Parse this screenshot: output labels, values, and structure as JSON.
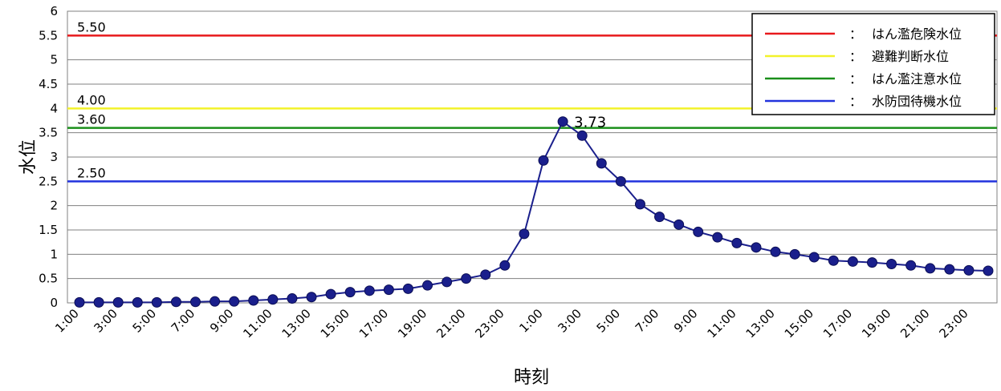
{
  "chart_data": {
    "type": "line",
    "xlabel": "時刻",
    "ylabel": "水位",
    "ylim": [
      0,
      6
    ],
    "yticks": [
      "0",
      "0.5",
      "1",
      "1.5",
      "2",
      "2.5",
      "3",
      "3.5",
      "4",
      "4.5",
      "5",
      "5.5",
      "6"
    ],
    "grid": true,
    "legend_position": "top-right",
    "x": [
      "1:00",
      "2:00",
      "3:00",
      "4:00",
      "5:00",
      "6:00",
      "7:00",
      "8:00",
      "9:00",
      "10:00",
      "11:00",
      "12:00",
      "13:00",
      "14:00",
      "15:00",
      "16:00",
      "17:00",
      "18:00",
      "19:00",
      "20:00",
      "21:00",
      "22:00",
      "23:00",
      "24:00",
      "1:00",
      "2:00",
      "3:00",
      "4:00",
      "5:00",
      "6:00",
      "7:00",
      "8:00",
      "9:00",
      "10:00",
      "11:00",
      "12:00",
      "13:00",
      "14:00",
      "15:00",
      "16:00",
      "17:00",
      "18:00",
      "19:00",
      "20:00",
      "21:00",
      "22:00",
      "23:00",
      "24:00"
    ],
    "x_tick_labels": [
      "1:00",
      "3:00",
      "5:00",
      "7:00",
      "9:00",
      "11:00",
      "13:00",
      "15:00",
      "17:00",
      "19:00",
      "21:00",
      "23:00",
      "1:00",
      "3:00",
      "5:00",
      "7:00",
      "9:00",
      "11:00",
      "13:00",
      "15:00",
      "17:00",
      "19:00",
      "21:00",
      "23:00"
    ],
    "series": [
      {
        "values": [
          0.01,
          0.01,
          0.01,
          0.01,
          0.01,
          0.02,
          0.02,
          0.03,
          0.03,
          0.05,
          0.07,
          0.09,
          0.12,
          0.18,
          0.22,
          0.25,
          0.27,
          0.29,
          0.36,
          0.43,
          0.5,
          0.58,
          0.77,
          1.42,
          2.93,
          3.73,
          3.44,
          2.87,
          2.5,
          2.03,
          1.77,
          1.61,
          1.46,
          1.35,
          1.23,
          1.14,
          1.05,
          1.0,
          0.94,
          0.87,
          0.85,
          0.83,
          0.8,
          0.77,
          0.71,
          0.69,
          0.67,
          0.66
        ],
        "color": "#1a1f8c"
      }
    ],
    "annotations": [
      {
        "text": "3.73",
        "at_index": 25
      }
    ],
    "reference_lines": [
      {
        "value": 5.5,
        "label": "5.50",
        "name": "はん濫危険水位",
        "color": "#e8191c"
      },
      {
        "value": 4.0,
        "label": "4.00",
        "name": "避難判断水位",
        "color": "#f2f22a"
      },
      {
        "value": 3.6,
        "label": "3.60",
        "name": "はん濫注意水位",
        "color": "#1a8f1a"
      },
      {
        "value": 2.5,
        "label": "2.50",
        "name": "水防団待機水位",
        "color": "#2233dd"
      }
    ],
    "legend_separator": "："
  }
}
